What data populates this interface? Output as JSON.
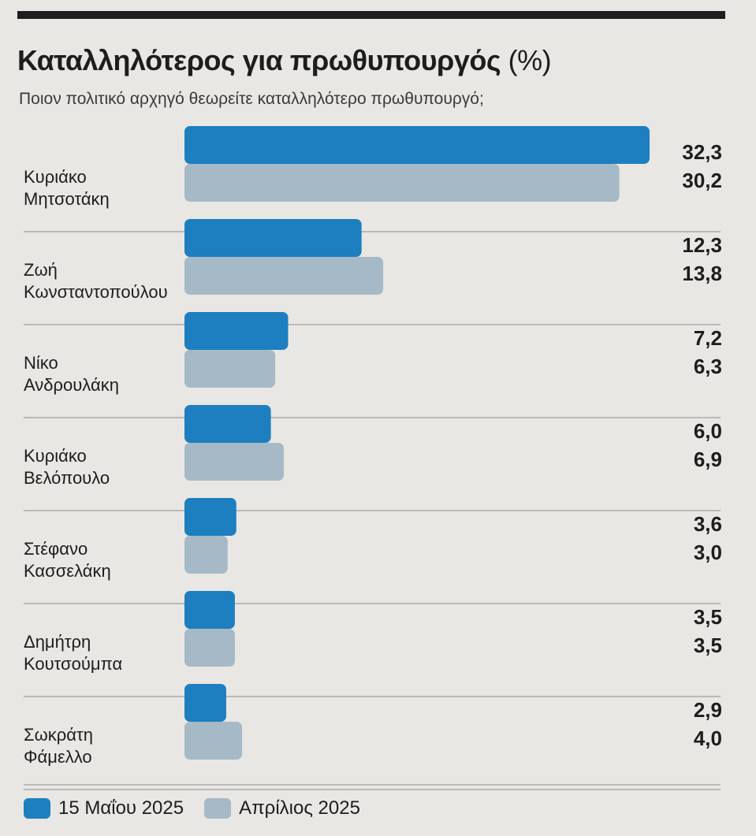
{
  "colors": {
    "current": "#1e7fc0",
    "previous": "#a6b9c6",
    "text": "#1d1d1d",
    "rule": "#8c8c8c"
  },
  "chart_data": {
    "type": "bar",
    "orientation": "horizontal",
    "title": "Καταλληλότερος για πρωθυπουργός",
    "title_unit": "(%)",
    "subtitle": "Ποιον πολιτικό αρχηγό θεωρείτε καταλληλότερο πρωθυπουργό;",
    "categories": [
      [
        "Κυριάκο",
        "Μητσοτάκη"
      ],
      [
        "Ζωή",
        "Κωνσταντοπούλου"
      ],
      [
        "Νίκο",
        "Ανδρουλάκη"
      ],
      [
        "Κυριάκο",
        "Βελόπουλο"
      ],
      [
        "Στέφανο",
        "Κασσελάκη"
      ],
      [
        "Δημήτρη",
        "Κουτσούμπα"
      ],
      [
        "Σωκράτη",
        "Φάμελλο"
      ]
    ],
    "series": [
      {
        "name": "15 Μαΐου 2025",
        "values": [
          32.3,
          12.3,
          7.2,
          6.0,
          3.6,
          3.5,
          2.9
        ],
        "labels": [
          "32,3",
          "12,3",
          "7,2",
          "6,0",
          "3,6",
          "3,5",
          "2,9"
        ]
      },
      {
        "name": "Απρίλιος 2025",
        "values": [
          30.2,
          13.8,
          6.3,
          6.9,
          3.0,
          3.5,
          4.0
        ],
        "labels": [
          "30,2",
          "13,8",
          "6,3",
          "6,9",
          "3,0",
          "3,5",
          "4,0"
        ]
      }
    ],
    "xlim": [
      0,
      32.3
    ],
    "grid": false,
    "legend": "bottom-left"
  }
}
